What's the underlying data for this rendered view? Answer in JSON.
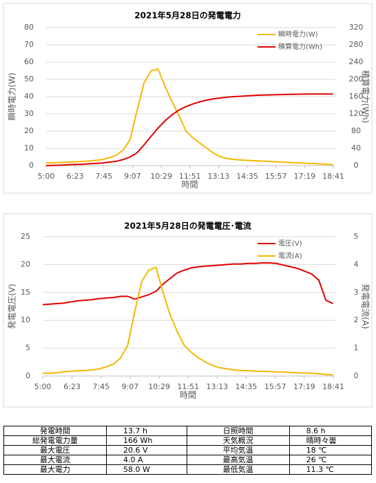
{
  "chart_data": [
    {
      "type": "line",
      "title": "2021年5月28日の発電電力",
      "xlabel": "時間",
      "ylabel": "瞬時電力(W)",
      "y2label": "積算電力(Wh)",
      "x": [
        "5:00",
        "5:20",
        "5:40",
        "6:00",
        "6:20",
        "6:40",
        "7:00",
        "7:20",
        "7:40",
        "8:00",
        "8:20",
        "8:40",
        "9:00",
        "9:20",
        "9:40",
        "10:00",
        "10:20",
        "10:40",
        "11:00",
        "11:20",
        "11:40",
        "12:00",
        "12:20",
        "12:40",
        "13:00",
        "13:20",
        "13:40",
        "14:00",
        "14:20",
        "14:40",
        "15:00",
        "15:20",
        "15:40",
        "16:00",
        "16:20",
        "16:40",
        "17:00",
        "17:20",
        "17:40",
        "18:00",
        "18:20",
        "18:40"
      ],
      "xlim": [
        "5:00",
        "18:41"
      ],
      "xticks": [
        "5:00",
        "6:23",
        "7:45",
        "9:07",
        "10:29",
        "11:51",
        "13:13",
        "14:35",
        "15:57",
        "17:19",
        "18:41"
      ],
      "ylim": [
        0,
        80
      ],
      "yticks": [
        0,
        10,
        20,
        30,
        40,
        50,
        60,
        70,
        80
      ],
      "y2lim": [
        0,
        320
      ],
      "y2ticks": [
        0,
        40,
        80,
        120,
        160,
        200,
        240,
        280,
        320
      ],
      "grid": true,
      "legend": "upper right",
      "series": [
        {
          "name": "瞬時電力(W)",
          "color": "#f5b800",
          "values": [
            1.5,
            1.6,
            1.8,
            2,
            2.2,
            2.4,
            2.6,
            3,
            3.5,
            4.5,
            6,
            9,
            15,
            32,
            48,
            55,
            56,
            46,
            37,
            29,
            20,
            16,
            13,
            10,
            7,
            5,
            4,
            3.5,
            3.2,
            3,
            2.8,
            2.6,
            2.4,
            2.2,
            2,
            1.8,
            1.6,
            1.4,
            1.2,
            1,
            0.8,
            0.5
          ]
        },
        {
          "name": "積算電力(Wh)",
          "color": "#e00000",
          "axis": "y2",
          "values": [
            0,
            0.5,
            1,
            2,
            2.5,
            3,
            4,
            5,
            6,
            8,
            10,
            14,
            20,
            30,
            48,
            68,
            87,
            104,
            118,
            129,
            137,
            143,
            148,
            152,
            155,
            157,
            159,
            160,
            161,
            162,
            163,
            163.5,
            164,
            164.5,
            165,
            165.3,
            165.6,
            165.8,
            166,
            166,
            166,
            166
          ]
        }
      ]
    },
    {
      "type": "line",
      "title": "2021年5月28日の発電電圧･電流",
      "xlabel": "時間",
      "ylabel": "発電電圧(V)",
      "y2label": "発電電流(A)",
      "x": [
        "5:00",
        "5:20",
        "5:40",
        "6:00",
        "6:20",
        "6:40",
        "7:00",
        "7:20",
        "7:40",
        "8:00",
        "8:20",
        "8:40",
        "9:00",
        "9:20",
        "9:40",
        "10:00",
        "10:20",
        "10:40",
        "11:00",
        "11:20",
        "11:40",
        "12:00",
        "12:20",
        "12:40",
        "13:00",
        "13:20",
        "13:40",
        "14:00",
        "14:20",
        "14:40",
        "15:00",
        "15:20",
        "15:40",
        "16:00",
        "16:20",
        "16:40",
        "17:00",
        "17:20",
        "17:40",
        "18:00",
        "18:20",
        "18:40"
      ],
      "xlim": [
        "5:00",
        "18:41"
      ],
      "xticks": [
        "5:00",
        "6:23",
        "7:45",
        "9:07",
        "10:29",
        "11:51",
        "13:13",
        "14:35",
        "15:57",
        "17:19",
        "18:41"
      ],
      "ylim": [
        0,
        25
      ],
      "yticks": [
        0,
        5,
        10,
        15,
        20,
        25
      ],
      "y2lim": [
        0,
        5
      ],
      "y2ticks": [
        0,
        1,
        2,
        3,
        4,
        5
      ],
      "grid": true,
      "legend": "upper right",
      "series": [
        {
          "name": "電圧(V)",
          "color": "#e00000",
          "values": [
            12.8,
            12.9,
            13.0,
            13.1,
            13.3,
            13.5,
            13.6,
            13.7,
            13.9,
            14.0,
            14.1,
            14.3,
            14.3,
            13.8,
            14.2,
            14.6,
            15.2,
            16.5,
            17.5,
            18.5,
            19.0,
            19.4,
            19.6,
            19.7,
            19.8,
            19.9,
            20.0,
            20.1,
            20.1,
            20.2,
            20.2,
            20.3,
            20.3,
            20.2,
            19.9,
            19.6,
            19.3,
            18.8,
            18.3,
            17.2,
            13.6,
            13.0
          ]
        },
        {
          "name": "電流(A)",
          "color": "#f5b800",
          "axis": "y2",
          "values": [
            0.1,
            0.1,
            0.12,
            0.15,
            0.17,
            0.19,
            0.2,
            0.22,
            0.26,
            0.33,
            0.43,
            0.65,
            1.1,
            2.3,
            3.4,
            3.8,
            3.9,
            3.0,
            2.2,
            1.6,
            1.1,
            0.85,
            0.65,
            0.5,
            0.38,
            0.3,
            0.26,
            0.22,
            0.2,
            0.19,
            0.18,
            0.17,
            0.16,
            0.15,
            0.14,
            0.13,
            0.12,
            0.11,
            0.1,
            0.08,
            0.06,
            0.04
          ]
        }
      ]
    }
  ],
  "table": {
    "rows": [
      [
        "発電時間",
        "13.7 h",
        "日照時間",
        "8.6 h"
      ],
      [
        "総発電電力量",
        "166 Wh",
        "天気概況",
        "晴時々曇"
      ],
      [
        "最大電圧",
        "20.6 V",
        "平均気温",
        "18 ℃"
      ],
      [
        "最大電流",
        "4.0 A",
        "最高気温",
        "26 ℃"
      ],
      [
        "最大電力",
        "58.0 W",
        "最低気温",
        "11.3 ℃"
      ]
    ]
  }
}
